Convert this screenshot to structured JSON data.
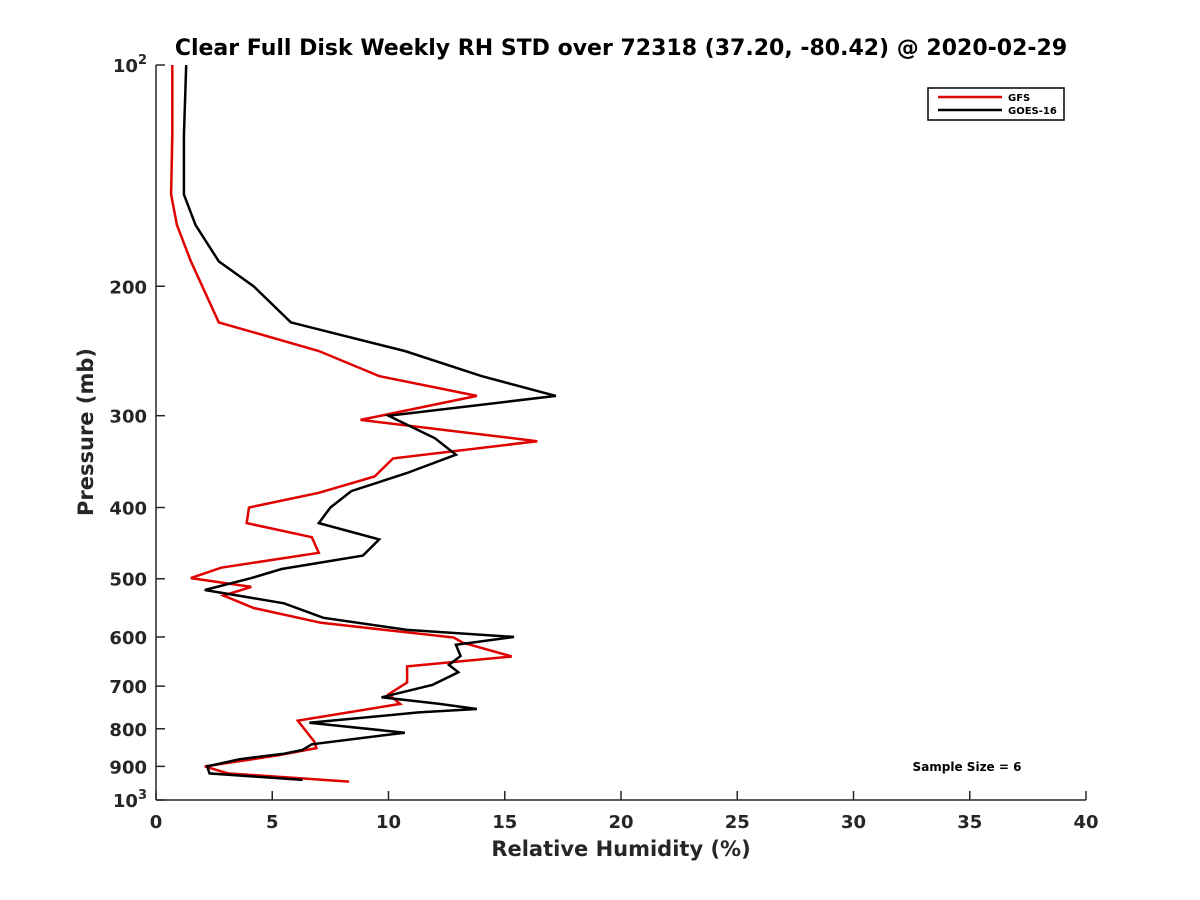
{
  "chart_data": {
    "type": "line",
    "title": "Clear Full Disk Weekly RH STD over 72318 (37.20, -80.42) @ 2020-02-29",
    "xlabel": "Relative Humidity (%)",
    "ylabel": "Pressure (mb)",
    "xlim": [
      0,
      40
    ],
    "ylim": [
      100,
      1000
    ],
    "y_scale": "log",
    "y_reversed": true,
    "x_ticks": [
      {
        "value": 0,
        "label": "0"
      },
      {
        "value": 5,
        "label": "5"
      },
      {
        "value": 10,
        "label": "10"
      },
      {
        "value": 15,
        "label": "15"
      },
      {
        "value": 20,
        "label": "20"
      },
      {
        "value": 25,
        "label": "25"
      },
      {
        "value": 30,
        "label": "30"
      },
      {
        "value": 35,
        "label": "35"
      },
      {
        "value": 40,
        "label": "40"
      }
    ],
    "y_ticks": [
      {
        "value": 100,
        "base": "10",
        "sup": "2"
      },
      {
        "value": 200,
        "base": "200",
        "sup": ""
      },
      {
        "value": 300,
        "base": "300",
        "sup": ""
      },
      {
        "value": 400,
        "base": "400",
        "sup": ""
      },
      {
        "value": 500,
        "base": "500",
        "sup": ""
      },
      {
        "value": 600,
        "base": "600",
        "sup": ""
      },
      {
        "value": 700,
        "base": "700",
        "sup": ""
      },
      {
        "value": 800,
        "base": "800",
        "sup": ""
      },
      {
        "value": 900,
        "base": "900",
        "sup": ""
      },
      {
        "value": 1000,
        "base": "10",
        "sup": "3"
      }
    ],
    "grid": false,
    "legend_position": "top-right",
    "annotation": "Sample Size = 6",
    "series": [
      {
        "name": "GFS",
        "color": "#e00000",
        "points": [
          [
            0.7,
            100
          ],
          [
            0.7,
            125
          ],
          [
            0.65,
            150
          ],
          [
            0.9,
            165
          ],
          [
            1.5,
            185
          ],
          [
            2.7,
            224
          ],
          [
            7.0,
            245
          ],
          [
            9.6,
            265
          ],
          [
            13.8,
            282
          ],
          [
            8.8,
            304
          ],
          [
            16.4,
            325
          ],
          [
            10.2,
            343
          ],
          [
            9.4,
            363
          ],
          [
            7.0,
            382
          ],
          [
            4.0,
            400
          ],
          [
            3.9,
            420
          ],
          [
            6.7,
            439
          ],
          [
            7.0,
            461
          ],
          [
            2.8,
            483
          ],
          [
            1.5,
            499
          ],
          [
            4.1,
            513
          ],
          [
            2.9,
            527
          ],
          [
            4.2,
            548
          ],
          [
            7.1,
            574
          ],
          [
            12.8,
            601
          ],
          [
            13.2,
            611
          ],
          [
            15.3,
            638
          ],
          [
            10.8,
            658
          ],
          [
            10.8,
            692
          ],
          [
            10.0,
            718
          ],
          [
            10.5,
            740
          ],
          [
            6.1,
            780
          ],
          [
            6.8,
            832
          ],
          [
            6.9,
            850
          ],
          [
            5.2,
            870
          ],
          [
            2.1,
            900
          ],
          [
            3.1,
            920
          ],
          [
            8.3,
            944
          ]
        ]
      },
      {
        "name": "GOES-16",
        "color": "#000000",
        "points": [
          [
            1.3,
            100
          ],
          [
            1.2,
            125
          ],
          [
            1.2,
            150
          ],
          [
            1.7,
            165
          ],
          [
            2.7,
            185
          ],
          [
            4.2,
            200
          ],
          [
            5.8,
            224
          ],
          [
            10.7,
            245
          ],
          [
            14.0,
            265
          ],
          [
            17.2,
            282
          ],
          [
            10.0,
            300
          ],
          [
            12.0,
            322
          ],
          [
            12.9,
            339
          ],
          [
            10.8,
            359
          ],
          [
            8.4,
            380
          ],
          [
            7.5,
            400
          ],
          [
            7.0,
            420
          ],
          [
            9.6,
            442
          ],
          [
            8.9,
            465
          ],
          [
            5.4,
            485
          ],
          [
            4.1,
            499
          ],
          [
            2.1,
            518
          ],
          [
            5.5,
            540
          ],
          [
            7.2,
            565
          ],
          [
            10.8,
            587
          ],
          [
            15.4,
            600
          ],
          [
            12.9,
            615
          ],
          [
            13.1,
            637
          ],
          [
            12.6,
            655
          ],
          [
            13.0,
            670
          ],
          [
            11.9,
            697
          ],
          [
            9.7,
            725
          ],
          [
            12.2,
            740
          ],
          [
            13.8,
            752
          ],
          [
            11.3,
            760
          ],
          [
            6.6,
            785
          ],
          [
            10.7,
            810
          ],
          [
            6.7,
            840
          ],
          [
            6.3,
            855
          ],
          [
            5.5,
            865
          ],
          [
            3.6,
            880
          ],
          [
            2.2,
            900
          ],
          [
            2.3,
            920
          ],
          [
            6.3,
            939
          ]
        ]
      }
    ]
  }
}
